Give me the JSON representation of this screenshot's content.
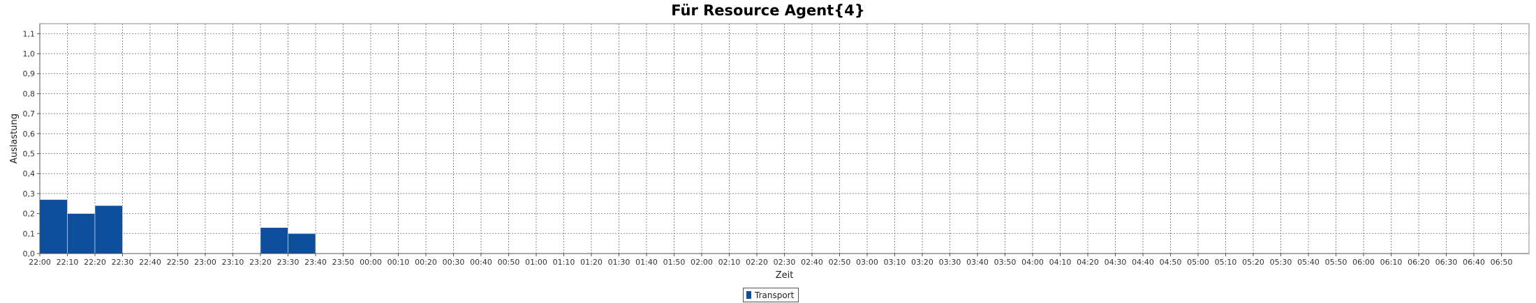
{
  "chart_data": {
    "type": "bar",
    "title": "Für Resource Agent{4}",
    "xlabel": "Zeit",
    "ylabel": "Auslastung",
    "ylim": [
      0,
      1.15
    ],
    "yticks": [
      "0,0",
      "0,1",
      "0,2",
      "0,3",
      "0,4",
      "0,5",
      "0,6",
      "0,7",
      "0,8",
      "0,9",
      "1,0",
      "1,1"
    ],
    "grid": true,
    "legend_position": "bottom",
    "colors": {
      "bar": "#0d4f9c",
      "grid": "#8a8a8a",
      "axis": "#555555"
    },
    "categories": [
      "22:00",
      "22:10",
      "22:20",
      "22:30",
      "22:40",
      "22:50",
      "23:00",
      "23:10",
      "23:20",
      "23:30",
      "23:40",
      "23:50",
      "00:00",
      "00:10",
      "00:20",
      "00:30",
      "00:40",
      "00:50",
      "01:00",
      "01:10",
      "01:20",
      "01:30",
      "01:40",
      "01:50",
      "02:00",
      "02:10",
      "02:20",
      "02:30",
      "02:40",
      "02:50",
      "03:00",
      "03:10",
      "03:20",
      "03:30",
      "03:40",
      "03:50",
      "04:00",
      "04:10",
      "04:20",
      "04:30",
      "04:40",
      "04:50",
      "05:00",
      "05:10",
      "05:20",
      "05:30",
      "05:40",
      "05:50",
      "06:00",
      "06:10",
      "06:20",
      "06:30",
      "06:40",
      "06:50"
    ],
    "series": [
      {
        "name": "Transport",
        "bars": [
          {
            "start": "22:00",
            "end": "22:10",
            "value": 0.27
          },
          {
            "start": "22:10",
            "end": "22:20",
            "value": 0.2
          },
          {
            "start": "22:20",
            "end": "22:30",
            "value": 0.24
          },
          {
            "start": "23:20",
            "end": "23:30",
            "value": 0.13
          },
          {
            "start": "23:30",
            "end": "23:40",
            "value": 0.1
          }
        ]
      }
    ]
  }
}
